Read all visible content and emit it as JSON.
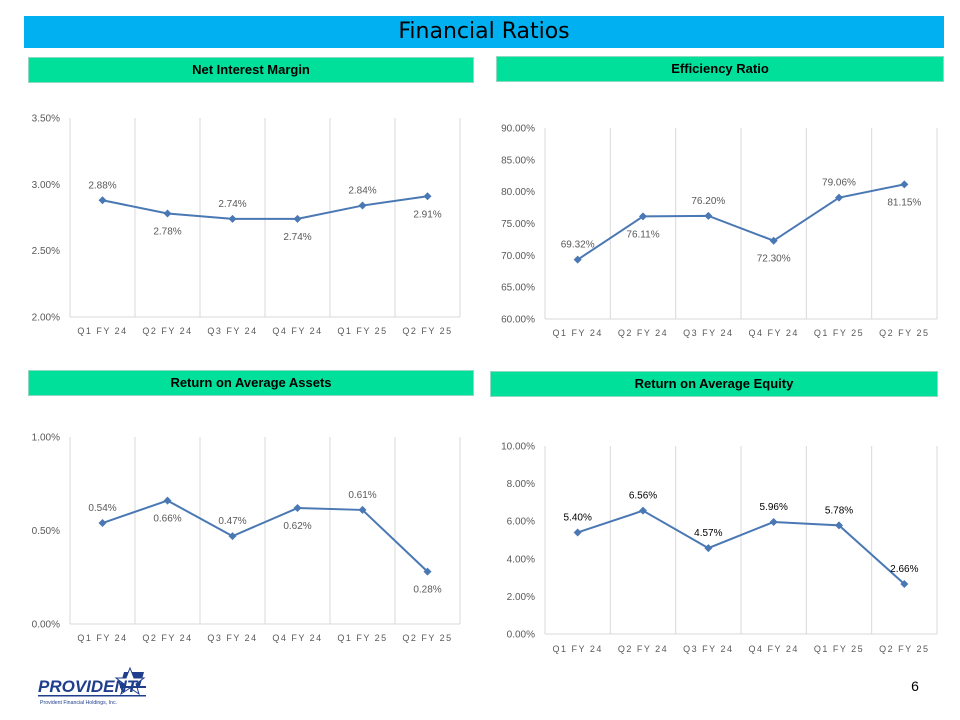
{
  "page": {
    "title": "Financial Ratios",
    "page_number": "6"
  },
  "logo": {
    "name": "PROVIDENT",
    "tagline": "Provident Financial Holdings, Inc."
  },
  "colors": {
    "title_bar": "#00b0f0",
    "header_bg": "#00e09a",
    "series": "#4a78b4",
    "grid": "#d9d9d9",
    "axis_text": "#595959"
  },
  "chart_data": [
    {
      "type": "line",
      "title": "Net Interest Margin",
      "categories": [
        "Q1 FY 24",
        "Q2 FY 24",
        "Q3 FY 24",
        "Q4 FY 24",
        "Q1 FY 25",
        "Q2 FY 25"
      ],
      "values": [
        2.88,
        2.78,
        2.74,
        2.74,
        2.84,
        2.91
      ],
      "data_labels": [
        "2.88%",
        "2.78%",
        "2.74%",
        "2.74%",
        "2.84%",
        "2.91%"
      ],
      "label_pos": [
        "above",
        "below",
        "above",
        "below",
        "above",
        "below"
      ],
      "ylim": [
        2.0,
        3.5
      ],
      "yticks": [
        2.0,
        2.5,
        3.0,
        3.5
      ],
      "ytick_labels": [
        "2.00%",
        "2.50%",
        "3.00%",
        "3.50%"
      ]
    },
    {
      "type": "line",
      "title": "Efficiency Ratio",
      "categories": [
        "Q1 FY 24",
        "Q2 FY 24",
        "Q3 FY 24",
        "Q4 FY 24",
        "Q1 FY 25",
        "Q2 FY 25"
      ],
      "values": [
        69.32,
        76.11,
        76.2,
        72.3,
        79.06,
        81.15
      ],
      "data_labels": [
        "69.32%",
        "76.11%",
        "76.20%",
        "72.30%",
        "79.06%",
        "81.15%"
      ],
      "label_pos": [
        "above",
        "below",
        "above",
        "below",
        "above",
        "below"
      ],
      "ylim": [
        60,
        90
      ],
      "yticks": [
        60,
        65,
        70,
        75,
        80,
        85,
        90
      ],
      "ytick_labels": [
        "60.00%",
        "65.00%",
        "70.00%",
        "75.00%",
        "80.00%",
        "85.00%",
        "90.00%"
      ]
    },
    {
      "type": "line",
      "title": "Return on Average Assets",
      "categories": [
        "Q1 FY 24",
        "Q2 FY 24",
        "Q3 FY 24",
        "Q4 FY 24",
        "Q1 FY 25",
        "Q2 FY 25"
      ],
      "values": [
        0.54,
        0.66,
        0.47,
        0.62,
        0.61,
        0.28
      ],
      "data_labels": [
        "0.54%",
        "0.66%",
        "0.47%",
        "0.62%",
        "0.61%",
        "0.28%"
      ],
      "label_pos": [
        "above",
        "below",
        "above",
        "below",
        "above",
        "below"
      ],
      "ylim": [
        0,
        1.0
      ],
      "yticks": [
        0,
        0.5,
        1.0
      ],
      "ytick_labels": [
        "0.00%",
        "0.50%",
        "1.00%"
      ]
    },
    {
      "type": "line",
      "title": "Return on Average Equity",
      "categories": [
        "Q1 FY 24",
        "Q2 FY 24",
        "Q3 FY 24",
        "Q4 FY 24",
        "Q1 FY 25",
        "Q2 FY 25"
      ],
      "values": [
        5.4,
        6.56,
        4.57,
        5.96,
        5.78,
        2.66
      ],
      "data_labels": [
        "5.40%",
        "6.56%",
        "4.57%",
        "5.96%",
        "5.78%",
        "2.66%"
      ],
      "label_pos": [
        "above",
        "above",
        "above",
        "above",
        "above",
        "above"
      ],
      "ylim": [
        0,
        10
      ],
      "yticks": [
        0,
        2,
        4,
        6,
        8,
        10
      ],
      "ytick_labels": [
        "0.00%",
        "2.00%",
        "4.00%",
        "6.00%",
        "8.00%",
        "10.00%"
      ]
    }
  ]
}
